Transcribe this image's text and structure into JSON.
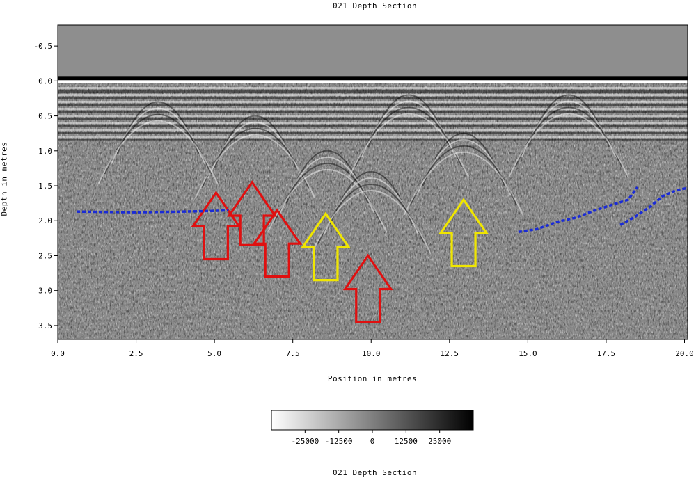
{
  "chart_data": {
    "type": "heatmap",
    "title": "_021_Depth_Section",
    "colorbar_title": "_021_Depth_Section",
    "xlabel": "Position_in_metres",
    "ylabel": "Depth_in_metres",
    "xlim": [
      0.0,
      20.1
    ],
    "ylim": [
      3.7,
      -0.8
    ],
    "x_ticks": [
      "0.0",
      "2.5",
      "5.0",
      "7.5",
      "10.0",
      "12.5",
      "15.0",
      "17.5",
      "20.0"
    ],
    "x_tick_values": [
      0.0,
      2.5,
      5.0,
      7.5,
      10.0,
      12.5,
      15.0,
      17.5,
      20.0
    ],
    "y_ticks": [
      "-0.5",
      "0.0",
      "0.5",
      "1.0",
      "1.5",
      "2.0",
      "2.5",
      "3.0",
      "3.5"
    ],
    "y_tick_values": [
      -0.5,
      0.0,
      0.5,
      1.0,
      1.5,
      2.0,
      2.5,
      3.0,
      3.5
    ],
    "colorbar": {
      "ticks": [
        "-25000",
        "-12500",
        "0",
        "12500",
        "25000"
      ],
      "tick_values": [
        -25000,
        -12500,
        0,
        12500,
        25000
      ],
      "range": [
        -37500,
        37500
      ],
      "colors": {
        "low": "#ffffff",
        "high": "#000000"
      }
    },
    "annotations": {
      "red_arrows": [
        {
          "x": 5.05,
          "tip_depth": 1.6,
          "tail_depth": 2.55
        },
        {
          "x": 6.2,
          "tip_depth": 1.45,
          "tail_depth": 2.35
        },
        {
          "x": 7.0,
          "tip_depth": 1.85,
          "tail_depth": 2.8
        },
        {
          "x": 9.9,
          "tip_depth": 2.5,
          "tail_depth": 3.45
        }
      ],
      "yellow_arrows": [
        {
          "x": 8.55,
          "tip_depth": 1.9,
          "tail_depth": 2.85
        },
        {
          "x": 12.95,
          "tip_depth": 1.7,
          "tail_depth": 2.65
        }
      ],
      "blue_lines": [
        {
          "points": [
            [
              0.6,
              1.87
            ],
            [
              2.5,
              1.88
            ],
            [
              4.0,
              1.87
            ],
            [
              5.0,
              1.86
            ],
            [
              5.45,
              1.85
            ]
          ]
        },
        {
          "points": [
            [
              14.7,
              2.16
            ],
            [
              15.3,
              2.12
            ],
            [
              15.9,
              2.02
            ],
            [
              16.5,
              1.96
            ],
            [
              17.1,
              1.86
            ],
            [
              17.7,
              1.77
            ],
            [
              18.2,
              1.7
            ],
            [
              18.5,
              1.52
            ]
          ]
        },
        {
          "points": [
            [
              17.95,
              2.06
            ],
            [
              18.4,
              1.95
            ],
            [
              18.9,
              1.8
            ],
            [
              19.3,
              1.65
            ],
            [
              19.7,
              1.57
            ],
            [
              20.1,
              1.53
            ]
          ]
        }
      ],
      "colors": {
        "red": "#e01010",
        "yellow": "#f0e600",
        "blue": "#1a2bd6"
      }
    }
  }
}
